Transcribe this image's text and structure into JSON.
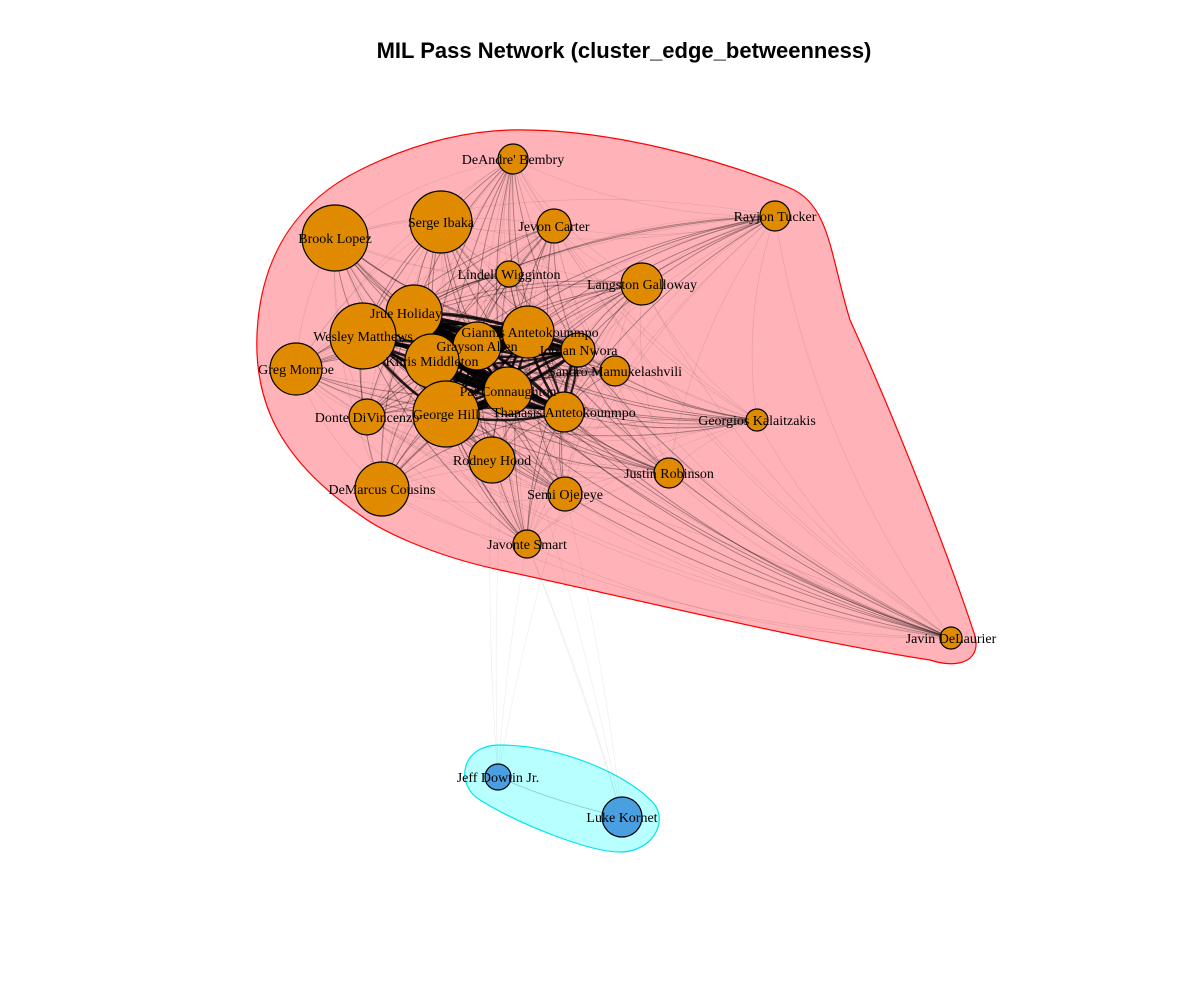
{
  "title": "MIL Pass Network (cluster_edge_betweenness)",
  "colors": {
    "cluster_1_fill": "#ffb3b8",
    "cluster_1_border": "#ff0000",
    "cluster_2_fill": "#b8ffff",
    "cluster_2_border": "#00e5ee",
    "node_cluster_1": "#e08a00",
    "node_cluster_2": "#4a9fe0",
    "edge": "#000000"
  },
  "clusters": [
    {
      "id": 1,
      "members": [
        "DeAndre' Bembry",
        "Serge Ibaka",
        "Jevon Carter",
        "Rayjon Tucker",
        "Brook Lopez",
        "Lindell Wigginton",
        "Langston Galloway",
        "Jrue Holiday",
        "Giannis Antetokounmpo",
        "Wesley Matthews",
        "Grayson Allen",
        "Jordan Nwora",
        "Khris Middleton",
        "Greg Monroe",
        "Sandro Mamukelashvili",
        "Pat Connaughton",
        "George Hill",
        "Thanasis Antetokounmpo",
        "Donte DiVincenzo",
        "Georgios Kalaitzakis",
        "Rodney Hood",
        "Justin Robinson",
        "DeMarcus Cousins",
        "Semi Ojeleye",
        "Javonte Smart",
        "Javin DeLaurier"
      ]
    },
    {
      "id": 2,
      "members": [
        "Jeff Dowtin Jr.",
        "Luke Kornet"
      ]
    }
  ],
  "nodes": [
    {
      "name": "DeAndre' Bembry",
      "cluster": 1
    },
    {
      "name": "Serge Ibaka",
      "cluster": 1
    },
    {
      "name": "Jevon Carter",
      "cluster": 1
    },
    {
      "name": "Rayjon Tucker",
      "cluster": 1
    },
    {
      "name": "Brook Lopez",
      "cluster": 1
    },
    {
      "name": "Lindell Wigginton",
      "cluster": 1
    },
    {
      "name": "Langston Galloway",
      "cluster": 1
    },
    {
      "name": "Jrue Holiday",
      "cluster": 1
    },
    {
      "name": "Giannis Antetokounmpo",
      "cluster": 1
    },
    {
      "name": "Wesley Matthews",
      "cluster": 1
    },
    {
      "name": "Grayson Allen",
      "cluster": 1
    },
    {
      "name": "Jordan Nwora",
      "cluster": 1
    },
    {
      "name": "Khris Middleton",
      "cluster": 1
    },
    {
      "name": "Greg Monroe",
      "cluster": 1
    },
    {
      "name": "Sandro Mamukelashvili",
      "cluster": 1
    },
    {
      "name": "Pat Connaughton",
      "cluster": 1
    },
    {
      "name": "George Hill",
      "cluster": 1
    },
    {
      "name": "Thanasis Antetokounmpo",
      "cluster": 1
    },
    {
      "name": "Donte DiVincenzo",
      "cluster": 1
    },
    {
      "name": "Georgios Kalaitzakis",
      "cluster": 1
    },
    {
      "name": "Rodney Hood",
      "cluster": 1
    },
    {
      "name": "Justin Robinson",
      "cluster": 1
    },
    {
      "name": "DeMarcus Cousins",
      "cluster": 1
    },
    {
      "name": "Semi Ojeleye",
      "cluster": 1
    },
    {
      "name": "Javonte Smart",
      "cluster": 1
    },
    {
      "name": "Javin DeLaurier",
      "cluster": 1
    },
    {
      "name": "Jeff Dowtin Jr.",
      "cluster": 2
    },
    {
      "name": "Luke Kornet",
      "cluster": 2
    }
  ]
}
